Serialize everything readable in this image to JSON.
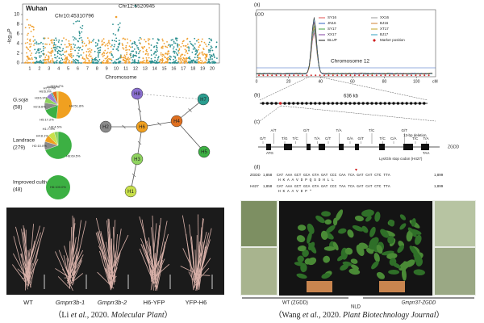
{
  "left": {
    "manhattan": {
      "location": "Wuhan",
      "y_label": "-log₁₀P",
      "y_ticks": [
        0,
        2,
        4,
        6,
        8,
        10
      ],
      "x_label": "Chromosome",
      "chromosomes": [
        1,
        2,
        3,
        4,
        5,
        6,
        7,
        8,
        9,
        10,
        11,
        12,
        13,
        14,
        15,
        16,
        17,
        18,
        19,
        20
      ],
      "peaks": [
        "Chr10:45310796",
        "Chr12:5520945"
      ]
    },
    "pies": [
      {
        "group": "G.soja",
        "n": "(58)",
        "slices": [
          {
            "label": "H4:51.8%",
            "value": 51.8,
            "color": "#f0a020"
          },
          {
            "label": "H5:17.2%",
            "value": 17.2,
            "color": "#3cb043"
          },
          {
            "label": "H2:8.6%",
            "value": 8.6,
            "color": "#8a8a8a"
          },
          {
            "label": "H3:6.9%",
            "value": 6.9,
            "color": "#8fd35f"
          },
          {
            "label": "H8:6.9%",
            "value": 6.9,
            "color": "#9b7fd4"
          },
          {
            "label": "H7:1.7%",
            "value": 1.7,
            "color": "#2aa39a"
          },
          {
            "label": "H6:5.2%",
            "value": 5.2,
            "color": "#e07020"
          },
          {
            "label": "H1:1.7%",
            "value": 1.7,
            "color": "#c8e04a"
          }
        ]
      },
      {
        "group": "Landrace",
        "n": "(279)",
        "slices": [
          {
            "label": "H6:69.5%",
            "value": 69.5,
            "color": "#3cb043"
          },
          {
            "label": "H2:10.0%",
            "value": 10.0,
            "color": "#8a8a8a"
          },
          {
            "label": "H4:8.1%",
            "value": 8.1,
            "color": "#f0a020"
          },
          {
            "label": "H1:7.9%",
            "value": 7.9,
            "color": "#c8e04a"
          },
          {
            "label": "H3:4.5%",
            "value": 4.5,
            "color": "#8fd35f"
          }
        ]
      },
      {
        "group": "Improved cultivar",
        "n": "(48)",
        "slices": [
          {
            "label": "H6:100.0%",
            "value": 100.0,
            "color": "#3cb043"
          }
        ]
      }
    ],
    "network": [
      {
        "label": "H8",
        "color": "#8a6fd0"
      },
      {
        "label": "H7",
        "color": "#2a9d8f"
      },
      {
        "label": "H2",
        "color": "#8a8a8a"
      },
      {
        "label": "H6",
        "color": "#f0a020"
      },
      {
        "label": "H4",
        "color": "#e07020"
      },
      {
        "label": "H5",
        "color": "#3cb043"
      },
      {
        "label": "H3",
        "color": "#8fd35f"
      },
      {
        "label": "H1",
        "color": "#c8e04a"
      }
    ],
    "photo_labels": [
      "WT",
      "Gmprr3b-1",
      "Gmprr3b-2",
      "H6-YFP",
      "YFP-H6"
    ],
    "caption": {
      "open": "（Li ",
      "etal": "et al.",
      "year": ", 2020. ",
      "journal": "Molecular Plant",
      "close": "）"
    }
  },
  "right": {
    "panel_a": {
      "tag": "(a)",
      "y_label": "LOD",
      "chromosome": "Chromosome 12",
      "x_ticks": [
        0,
        20,
        40,
        60,
        80,
        100
      ],
      "x_unit": "cM",
      "legend": [
        {
          "name": "SY16",
          "color": "#e05050"
        },
        {
          "name": "XX16",
          "color": "#9a9a9a"
        },
        {
          "name": "JN16",
          "color": "#3060c0"
        },
        {
          "name": "BJ16",
          "color": "#d08030"
        },
        {
          "name": "SY17",
          "color": "#40a040"
        },
        {
          "name": "XT17",
          "color": "#c0a020"
        },
        {
          "name": "XX17",
          "color": "#8040a0"
        },
        {
          "name": "BJ17",
          "color": "#30a0c0"
        },
        {
          "name": "BLUP",
          "color": "#202020"
        },
        {
          "name": "Marker position",
          "color": "#d02020"
        }
      ]
    },
    "panel_b": {
      "tag": "(b)",
      "length": "636 kb"
    },
    "panel_c": {
      "tag": "(c)",
      "gene": "ZGDD",
      "start": "ATG",
      "stop": "TAA",
      "snps": [
        "G/T",
        "A/T",
        "T/G",
        "T/C",
        "G/T",
        "T/A",
        "C/T",
        "T/A",
        "G/A",
        "G/T",
        "T/C",
        "T/C",
        "C/A",
        "G/T",
        "T/C",
        "T/A"
      ],
      "deletion": "13-bp deletion",
      "stop_note": "Lys/Gln stop codon (H427)"
    },
    "panel_d": {
      "tag": "(d)",
      "rows": [
        {
          "name": "ZGDD",
          "start": "1,858",
          "seq": "CAT AAA GCT GCA GTA GAT CCC CAA TCA GAT CAT CTC TTA",
          "end": "1,899",
          "aa": "H  K  A  A  V  D  P  Q  S  D  H  L  L"
        },
        {
          "name": "H427",
          "start": "1,858",
          "seq": "CAT AAA GCT GCA GTA GAT CCC TAA TCA GAT CAT CTC TTA",
          "end": "1,899",
          "aa": "H  K  A  A  V  D  P  *"
        }
      ]
    },
    "photo_labels": [
      "WT (ZGDD)",
      "NLD",
      "Gmprr37-ZGDD"
    ],
    "caption": {
      "open": "（Wang ",
      "etal": "et al.",
      "year": ", 2020. ",
      "journal": "Plant Biotechnology Journal",
      "close": "）"
    }
  }
}
